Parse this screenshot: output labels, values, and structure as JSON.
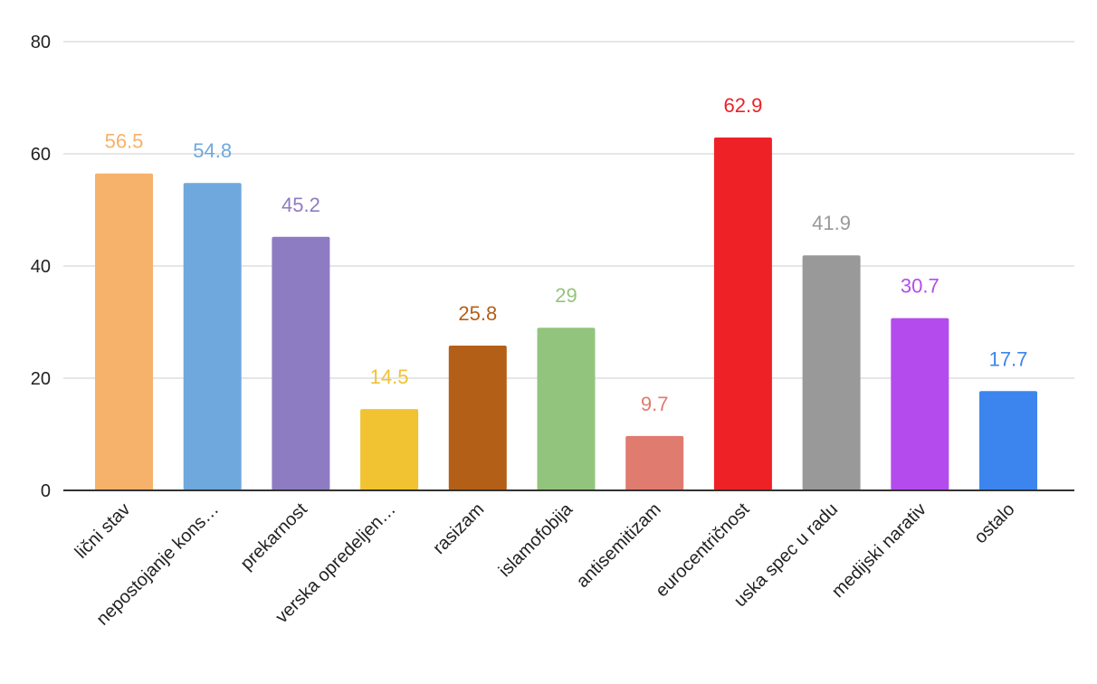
{
  "chart_data": {
    "type": "bar",
    "categories": [
      "lični stav",
      "nepostojanje kons…",
      "prekarnost",
      "verska opredeljen…",
      "rasizam",
      "islamofobija",
      "antisemitizam",
      "eurocentričnost",
      "uska spec u radu",
      "medijski narativ",
      "ostalo"
    ],
    "values": [
      56.5,
      54.8,
      45.2,
      14.5,
      25.8,
      29,
      9.7,
      62.9,
      41.9,
      30.7,
      17.7
    ],
    "data_labels": [
      "56.5",
      "54.8",
      "45.2",
      "14.5",
      "25.8",
      "29",
      "9.7",
      "62.9",
      "41.9",
      "30.7",
      "17.7"
    ],
    "colors": [
      "#f6b26b",
      "#6fa8dc",
      "#8e7cc3",
      "#f1c232",
      "#b45f18",
      "#93c47d",
      "#e07b6f",
      "#ee2127",
      "#999999",
      "#b44ced",
      "#3c85ee"
    ],
    "yticks": [
      "0",
      "20",
      "40",
      "60",
      "80"
    ],
    "ylim": [
      0,
      80
    ],
    "grid": true,
    "legend": "none"
  }
}
